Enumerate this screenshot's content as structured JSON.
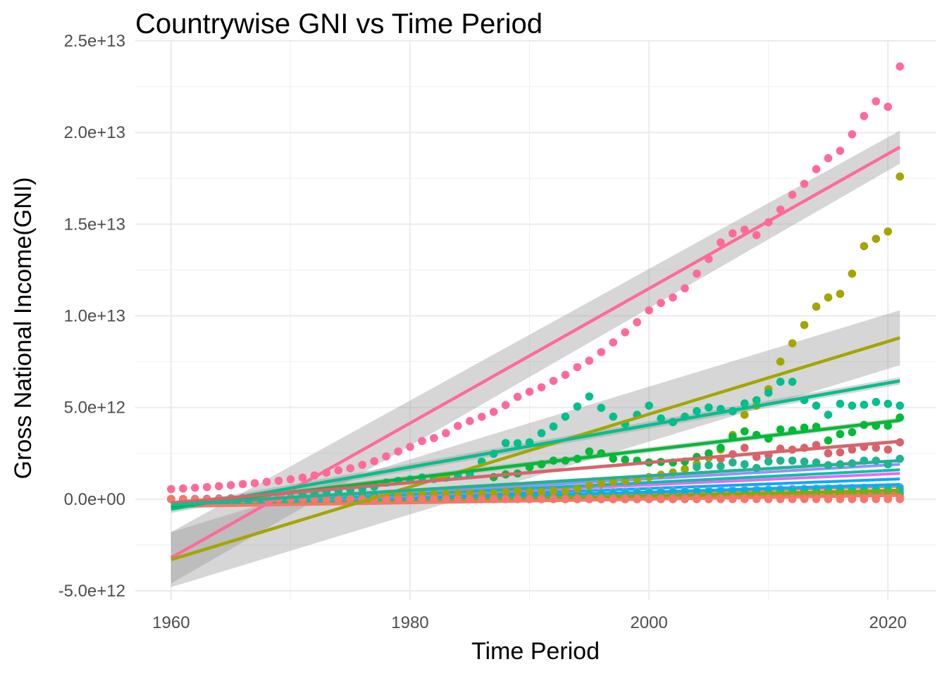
{
  "chart_data": {
    "type": "scatter",
    "title": "Countrywise GNI vs Time Period",
    "xlabel": "Time Period",
    "ylabel": "Gross National Income(GNI)",
    "xlim": [
      1957,
      2024
    ],
    "ylim": [
      -5500000000000.0,
      25000000000000.0
    ],
    "x_ticks": [
      1960,
      1980,
      2000,
      2020
    ],
    "x_tick_labels": [
      "1960",
      "1980",
      "2000",
      "2020"
    ],
    "y_ticks": [
      -5000000000000.0,
      0,
      5000000000000.0,
      10000000000000.0,
      15000000000000.0,
      20000000000000.0,
      25000000000000.0
    ],
    "y_tick_labels": [
      "-5.0e+12",
      "0.0e+00",
      "5.0e+12",
      "1.0e+13",
      "1.5e+13",
      "2.0e+13",
      "2.5e+13"
    ],
    "grid": true,
    "legend": "none",
    "background_series": [
      {
        "color": "#fd6d8b",
        "base": 0,
        "end": 700000000000.0
      },
      {
        "color": "#f064a8",
        "base": 0,
        "end": 400000000000.0
      },
      {
        "color": "#00aaff",
        "base": 0,
        "end": 1100000000000.0
      },
      {
        "color": "#e76bf3",
        "base": 0,
        "end": 1400000000000.0
      },
      {
        "color": "#9590ff",
        "base": 0,
        "end": 1900000000000.0
      },
      {
        "color": "#00c0af",
        "base": 0,
        "end": 1600000000000.0
      },
      {
        "color": "#00b0f6",
        "base": 0,
        "end": 800000000000.0
      },
      {
        "color": "#c49a00",
        "base": 0,
        "end": 300000000000.0
      },
      {
        "color": "#7cae00",
        "base": 0,
        "end": 500000000000.0
      },
      {
        "color": "#f8766d",
        "base": 0,
        "end": 200000000000.0
      }
    ],
    "series": [
      {
        "color": "#ff6a98",
        "x_start": 1960,
        "values": [
          550000000000.0,
          580000000000.0,
          620000000000.0,
          660000000000.0,
          710000000000.0,
          760000000000.0,
          820000000000.0,
          870000000000.0,
          940000000000.0,
          1000000000000.0,
          1080000000000.0,
          1170000000000.0,
          1290000000000.0,
          1440000000000.0,
          1570000000000.0,
          1680000000000.0,
          1870000000000.0,
          2070000000000.0,
          2330000000000.0,
          2600000000000.0,
          2850000000000.0,
          3170000000000.0,
          3330000000000.0,
          3600000000000.0,
          3990000000000.0,
          4260000000000.0,
          4490000000000.0,
          4760000000000.0,
          5130000000000.0,
          5580000000000.0,
          5860000000000.0,
          6100000000000.0,
          6450000000000.0,
          6780000000000.0,
          7200000000000.0,
          7550000000000.0,
          8020000000000.0,
          8550000000000.0,
          9100000000000.0,
          9650000000000.0,
          10300000000000.0,
          10700000000000.0,
          11000000000000.0,
          11500000000000.0,
          12300000000000.0,
          13100000000000.0,
          14000000000000.0,
          14500000000000.0,
          14700000000000.0,
          14400000000000.0,
          15100000000000.0,
          15800000000000.0,
          16600000000000.0,
          17200000000000.0,
          18000000000000.0,
          18600000000000.0,
          19000000000000.0,
          19900000000000.0,
          20900000000000.0,
          21700000000000.0,
          21400000000000.0,
          23600000000000.0
        ],
        "fit": {
          "y_1960": -3200000000000.0,
          "y_2021": 19200000000000.0,
          "band_half_start": 1400000000000.0,
          "band_half_end": 900000000000.0
        }
      },
      {
        "color": "#a3a500",
        "x_start": 1960,
        "values": [
          0,
          0,
          0,
          0,
          0,
          0,
          0,
          0,
          0,
          0,
          0,
          0,
          0,
          0,
          0,
          0,
          0,
          0,
          150000000000.0,
          180000000000.0,
          190000000000.0,
          280000000000.0,
          280000000000.0,
          300000000000.0,
          310000000000.0,
          310000000000.0,
          300000000000.0,
          320000000000.0,
          400000000000.0,
          450000000000.0,
          390000000000.0,
          400000000000.0,
          460000000000.0,
          440000000000.0,
          560000000000.0,
          730000000000.0,
          860000000000.0,
          950000000000.0,
          1020000000000.0,
          1080000000000.0,
          1200000000000.0,
          1330000000000.0,
          1450000000000.0,
          1640000000000.0,
          1930000000000.0,
          2260000000000.0,
          2700000000000.0,
          3500000000000.0,
          4600000000000.0,
          5100000000000.0,
          6000000000000.0,
          7500000000000.0,
          8500000000000.0,
          9500000000000.0,
          10500000000000.0,
          11000000000000.0,
          11200000000000.0,
          12300000000000.0,
          13800000000000.0,
          14200000000000.0,
          14600000000000.0,
          17600000000000.0
        ],
        "fit": {
          "y_1960": -3300000000000.0,
          "y_2021": 8800000000000.0,
          "band_half_start": 1500000000000.0,
          "band_half_end": 1500000000000.0
        }
      },
      {
        "color": "#00bf8c",
        "x_start": 1960,
        "values": [
          0,
          0,
          0,
          0,
          0,
          0,
          0,
          0,
          0,
          0,
          0,
          220000000000.0,
          320000000000.0,
          400000000000.0,
          450000000000.0,
          500000000000.0,
          570000000000.0,
          680000000000.0,
          900000000000.0,
          1000000000000.0,
          1070000000000.0,
          1180000000000.0,
          1100000000000.0,
          1170000000000.0,
          1280000000000.0,
          1350000000000.0,
          2040000000000.0,
          2470000000000.0,
          3060000000000.0,
          3050000000000.0,
          3100000000000.0,
          3600000000000.0,
          3960000000000.0,
          4500000000000.0,
          5050000000000.0,
          5600000000000.0,
          4980000000000.0,
          4500000000000.0,
          4100000000000.0,
          4600000000000.0,
          5100000000000.0,
          4400000000000.0,
          4200000000000.0,
          4500000000000.0,
          4800000000000.0,
          5000000000000.0,
          4920000000000.0,
          4800000000000.0,
          5220000000000.0,
          5400000000000.0,
          5800000000000.0,
          6400000000000.0,
          6400000000000.0,
          5400000000000.0,
          5100000000000.0,
          4600000000000.0,
          5200000000000.0,
          5100000000000.0,
          5150000000000.0,
          5300000000000.0,
          5200000000000.0,
          5100000000000.0
        ],
        "fit": {
          "y_1960": -550000000000.0,
          "y_2021": 6450000000000.0,
          "band_half_start": 200000000000.0,
          "band_half_end": 200000000000.0
        }
      },
      {
        "color": "#00ba38",
        "x_start": 1960,
        "values": [
          0,
          0,
          0,
          0,
          0,
          0,
          0,
          0,
          0,
          0,
          0,
          0,
          0,
          0,
          0,
          0,
          0,
          0,
          0,
          0,
          0,
          0,
          0,
          0,
          0,
          0,
          0,
          1200000000000.0,
          1350000000000.0,
          1400000000000.0,
          1750000000000.0,
          1900000000000.0,
          2100000000000.0,
          2100000000000.0,
          2200000000000.0,
          2600000000000.0,
          2500000000000.0,
          2200000000000.0,
          2150000000000.0,
          2100000000000.0,
          2000000000000.0,
          2030000000000.0,
          2000000000000.0,
          2050000000000.0,
          2300000000000.0,
          2500000000000.0,
          2800000000000.0,
          3400000000000.0,
          3700000000000.0,
          3500000000000.0,
          3300000000000.0,
          3800000000000.0,
          3750000000000.0,
          3900000000000.0,
          3950000000000.0,
          3200000000000.0,
          3550000000000.0,
          3650000000000.0,
          4050000000000.0,
          4000000000000.0,
          4000000000000.0,
          4450000000000.0
        ],
        "fit": {
          "y_1960": -400000000000.0,
          "y_2021": 4300000000000.0,
          "band_half_start": 150000000000.0,
          "band_half_end": 150000000000.0
        }
      },
      {
        "color": "#d9636b",
        "x_start": 1960,
        "values": [
          0,
          0,
          0,
          0,
          0,
          0,
          0,
          0,
          0,
          0,
          0,
          0,
          0,
          0,
          0,
          0,
          0,
          0,
          0,
          0,
          0,
          0,
          0,
          0,
          0,
          0,
          0,
          0,
          0,
          0,
          0,
          0,
          0,
          0,
          0,
          0,
          0,
          0,
          0,
          0,
          0,
          0,
          0,
          0,
          0,
          0,
          2200000000000.0,
          2450000000000.0,
          2800000000000.0,
          2300000000000.0,
          2400000000000.0,
          2750000000000.0,
          2700000000000.0,
          2800000000000.0,
          2950000000000.0,
          2500000000000.0,
          2550000000000.0,
          2700000000000.0,
          2850000000000.0,
          2800000000000.0,
          2700000000000.0,
          3100000000000.0
        ],
        "fit": {
          "y_1960": -200000000000.0,
          "y_2021": 3150000000000.0,
          "band_half_start": 100000000000.0,
          "band_half_end": 100000000000.0
        }
      },
      {
        "color": "#20b48f",
        "x_start": 1960,
        "values": [
          0,
          0,
          0,
          0,
          0,
          0,
          0,
          0,
          0,
          0,
          0,
          0,
          0,
          0,
          0,
          0,
          0,
          0,
          0,
          0,
          0,
          0,
          0,
          0,
          0,
          0,
          0,
          0,
          0,
          0,
          0,
          0,
          0,
          0,
          0,
          0,
          0,
          0,
          0,
          0,
          0,
          0,
          0,
          0,
          1750000000000.0,
          1850000000000.0,
          1800000000000.0,
          2000000000000.0,
          1900000000000.0,
          1700000000000.0,
          2050000000000.0,
          2100000000000.0,
          2100000000000.0,
          2050000000000.0,
          2000000000000.0,
          1850000000000.0,
          1900000000000.0,
          1950000000000.0,
          2100000000000.0,
          2100000000000.0,
          1900000000000.0,
          2200000000000.0
        ],
        "fit": {
          "y_1960": -300000000000.0,
          "y_2021": 2100000000000.0,
          "band_half_start": 80000000000.0,
          "band_half_end": 80000000000.0
        }
      }
    ]
  }
}
